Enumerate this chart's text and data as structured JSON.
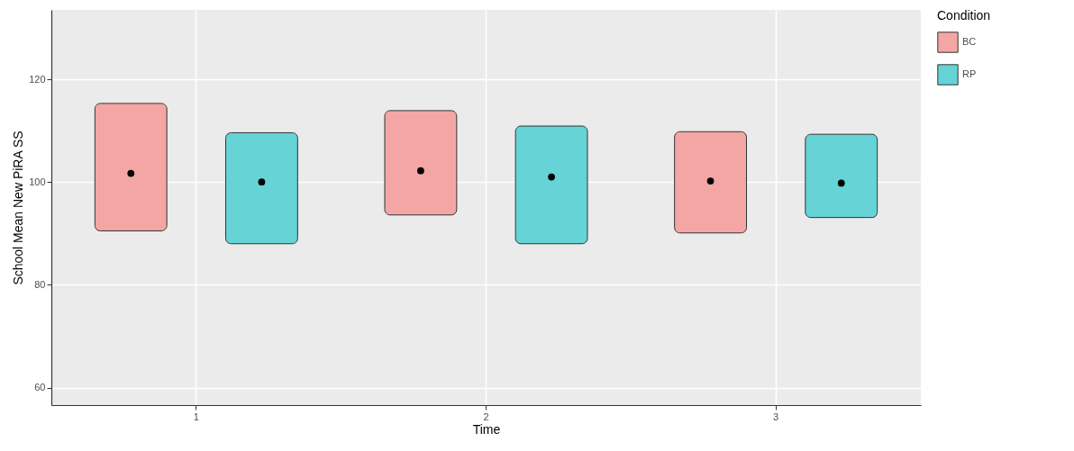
{
  "chart_data": {
    "type": "bar",
    "xlabel": "Time",
    "ylabel": "School Mean New PiRA SS",
    "legend_title": "Condition",
    "categories": [
      "1",
      "2",
      "3"
    ],
    "ylim": [
      56.6,
      133.5
    ],
    "yticks": [
      60,
      80,
      100,
      120
    ],
    "grid": true,
    "legend": "right",
    "marker": "circle",
    "series": [
      {
        "name": "BC",
        "color": "#f4a6a4",
        "base": [
          90.5,
          93.6,
          90.1
        ],
        "values": [
          24.8,
          20.3,
          19.7
        ]
      },
      {
        "name": "RP",
        "color": "#66d3d6",
        "base": [
          88.0,
          88.0,
          93.1
        ],
        "values": [
          21.6,
          22.9,
          16.2
        ]
      },
      {
        "type": "scatter",
        "color": "#000000",
        "x": [
          "1",
          "2",
          "3"
        ],
        "values": [
          101.7,
          102.2,
          100.2
        ]
      },
      {
        "type": "scatter",
        "color": "#000000",
        "x": [
          "1",
          "2",
          "3"
        ],
        "values": [
          100.0,
          101.0,
          99.8
        ]
      }
    ]
  }
}
